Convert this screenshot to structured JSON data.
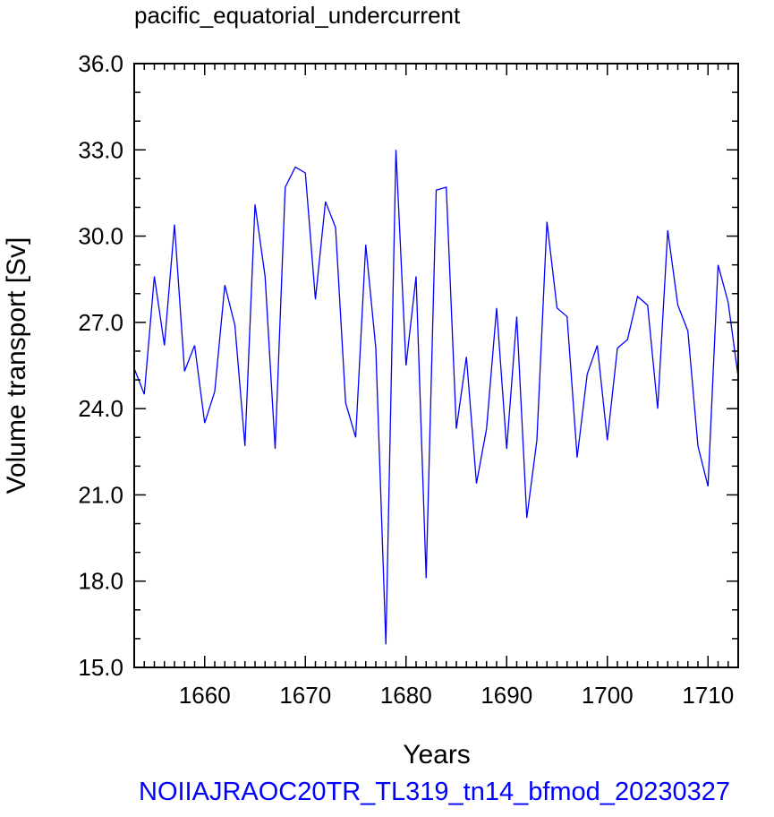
{
  "chart_data": {
    "type": "line",
    "title": "pacific_equatorial_undercurrent",
    "xlabel": "Years",
    "ylabel": "Volume transport [Sv]",
    "footer": "NOIIAJRAOC20TR_TL319_tn14_bfmod_20230327",
    "xlim": [
      1653,
      1713
    ],
    "ylim": [
      15.0,
      36.0
    ],
    "x_ticks": [
      "1660",
      "1670",
      "1680",
      "1690",
      "1700",
      "1710"
    ],
    "y_ticks": [
      "15.0",
      "18.0",
      "21.0",
      "24.0",
      "27.0",
      "30.0",
      "33.0",
      "36.0"
    ],
    "grid": false,
    "series": [
      {
        "color": "#0000ff",
        "x": [
          1653,
          1654,
          1655,
          1656,
          1657,
          1658,
          1659,
          1660,
          1661,
          1662,
          1663,
          1664,
          1665,
          1666,
          1667,
          1668,
          1669,
          1670,
          1671,
          1672,
          1673,
          1674,
          1675,
          1676,
          1677,
          1678,
          1679,
          1680,
          1681,
          1682,
          1683,
          1684,
          1685,
          1686,
          1687,
          1688,
          1689,
          1690,
          1691,
          1692,
          1693,
          1694,
          1695,
          1696,
          1697,
          1698,
          1699,
          1700,
          1701,
          1702,
          1703,
          1704,
          1705,
          1706,
          1707,
          1708,
          1709,
          1710,
          1711,
          1712,
          1713
        ],
        "y": [
          25.4,
          24.5,
          28.6,
          26.2,
          30.4,
          25.3,
          26.2,
          23.5,
          24.6,
          28.3,
          26.9,
          22.7,
          31.1,
          28.6,
          22.6,
          31.7,
          32.4,
          32.2,
          27.8,
          31.2,
          30.3,
          24.2,
          23.0,
          29.7,
          26.1,
          15.8,
          33.0,
          25.5,
          28.6,
          18.1,
          31.6,
          31.7,
          23.3,
          25.8,
          21.4,
          23.3,
          27.5,
          22.6,
          27.2,
          20.2,
          22.9,
          30.5,
          27.5,
          27.2,
          22.3,
          25.2,
          26.2,
          22.9,
          26.1,
          26.4,
          27.9,
          27.6,
          24.0,
          30.2,
          27.6,
          26.7,
          22.7,
          21.3,
          29.0,
          27.7,
          25.1
        ]
      }
    ]
  }
}
